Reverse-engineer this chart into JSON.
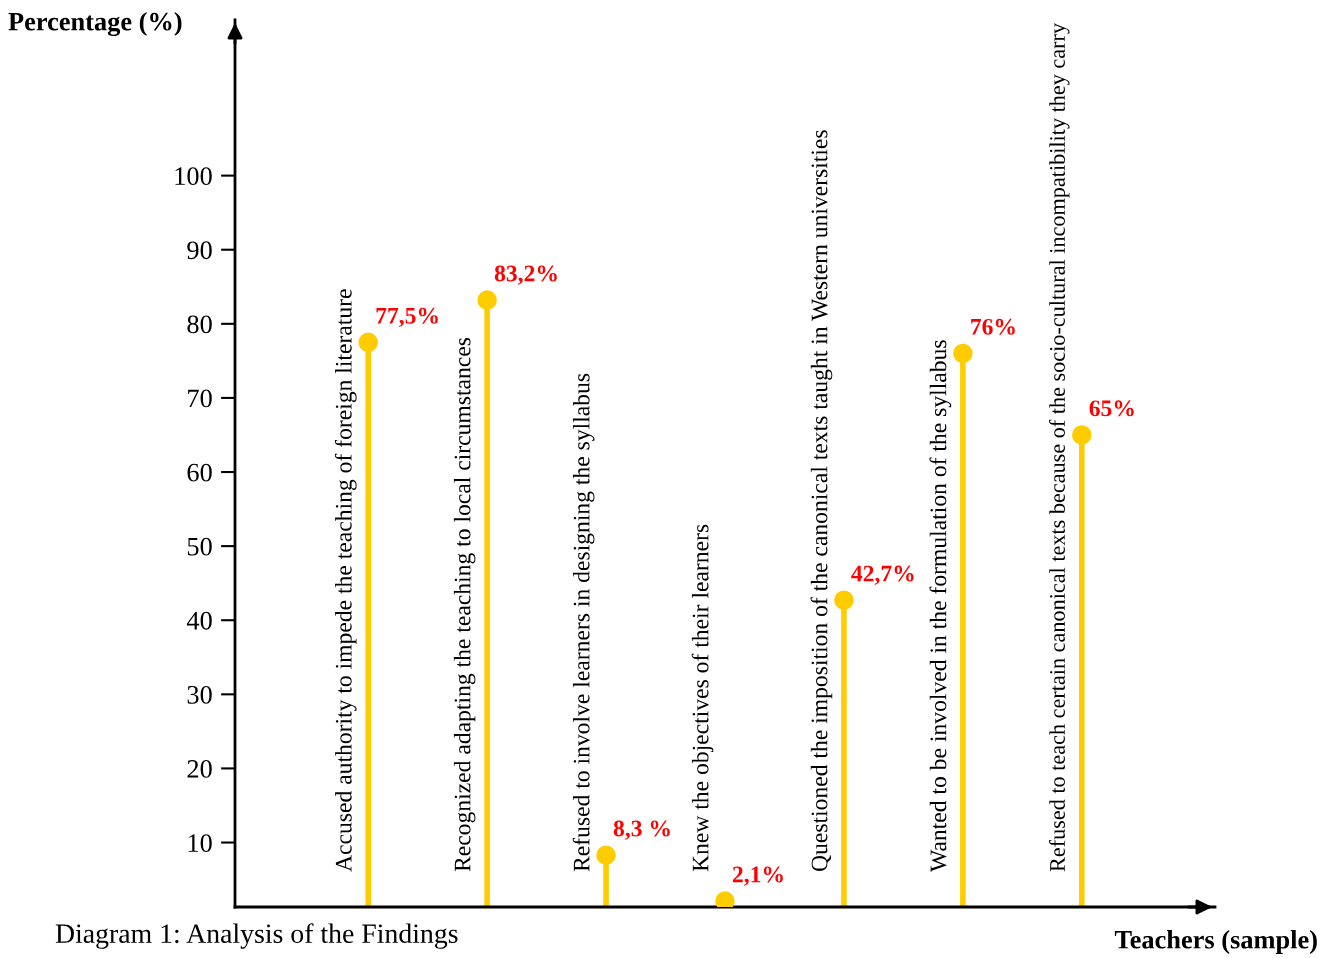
{
  "chart_data": {
    "type": "lollipop",
    "ylabel": "Percentage (%)",
    "xlabel": "Teachers (sample)",
    "categories": [
      "Accused authority to impede the teaching of foreign literature",
      "Recognized adapting the teaching to local circumstances",
      "Refused to involve learners in designing the syllabus",
      "Knew the objectives of their learners",
      "Questioned the imposition of the canonical texts taught in Western universities",
      "Wanted to be involved in the formulation of the syllabus",
      "Refused to teach certain canonical texts because of the socio-cultural incompatibility they carry"
    ],
    "values": [
      77.5,
      83.2,
      8.3,
      2.1,
      42.7,
      76,
      65
    ],
    "value_labels": [
      "77,5%",
      "83,2%",
      "8,3 %",
      "2,1%",
      "42,7%",
      "76%",
      "65%"
    ],
    "color": "#ffcc00",
    "ylim": [
      1.3,
      121
    ],
    "yticks": [
      10,
      20,
      30,
      40,
      50,
      60,
      70,
      80,
      90,
      100
    ],
    "marker": "circle",
    "grid": false,
    "annotations": [
      "Diagram 1: Analysis of the Findings"
    ]
  }
}
